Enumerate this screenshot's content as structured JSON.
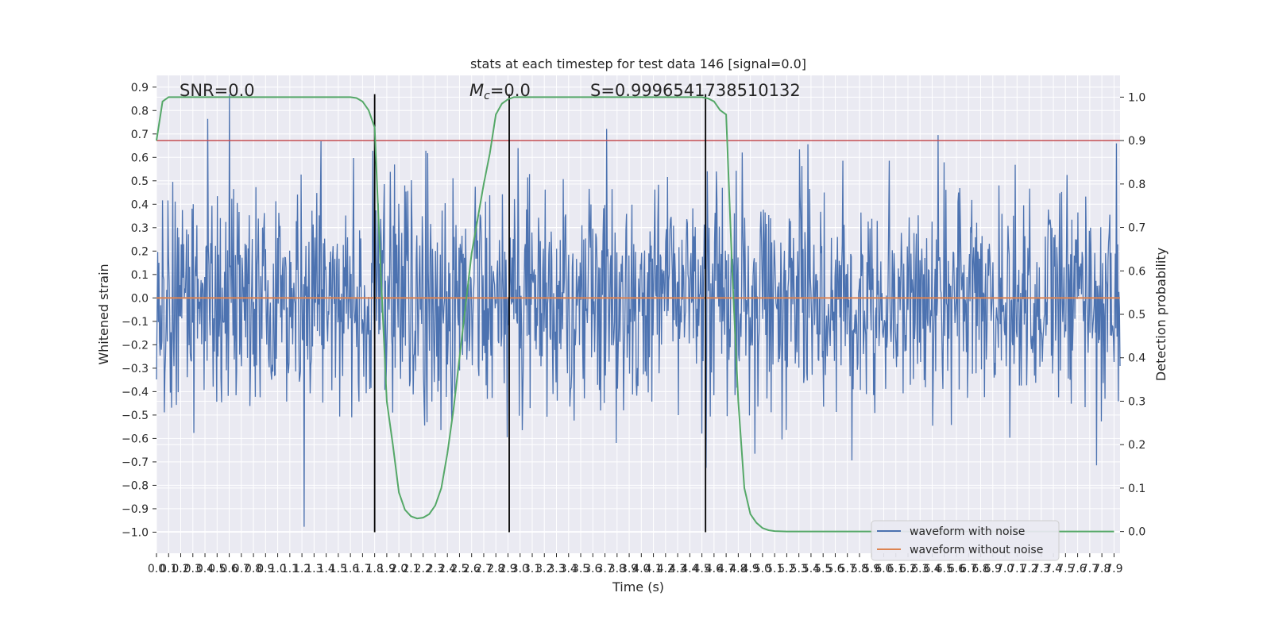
{
  "chart_data": {
    "type": "line",
    "title": "stats at each timestep for test data 146 [signal=0.0]",
    "xlabel": "Time (s)",
    "ylabel": "Whitened strain",
    "y2label": "Detection probability",
    "xlim": [
      0.0,
      7.95
    ],
    "ylim": [
      -1.09,
      0.95
    ],
    "y2lim": [
      -0.05,
      1.05
    ],
    "x_ticks": [
      "0.0",
      "0.1",
      "0.2",
      "0.3",
      "0.4",
      "0.5",
      "0.6",
      "0.7",
      "0.8",
      "0.9",
      "1.0",
      "1.1",
      "1.2",
      "1.3",
      "1.4",
      "1.5",
      "1.6",
      "1.7",
      "1.8",
      "1.9",
      "2.0",
      "2.1",
      "2.2",
      "2.3",
      "2.4",
      "2.5",
      "2.6",
      "2.7",
      "2.8",
      "2.9",
      "3.0",
      "3.1",
      "3.2",
      "3.3",
      "3.4",
      "3.5",
      "3.6",
      "3.7",
      "3.8",
      "3.9",
      "4.0",
      "4.1",
      "4.2",
      "4.3",
      "4.4",
      "4.5",
      "4.6",
      "4.7",
      "4.8",
      "4.9",
      "5.0",
      "5.1",
      "5.2",
      "5.3",
      "5.4",
      "5.5",
      "5.6",
      "5.7",
      "5.8",
      "5.9",
      "6.0",
      "6.1",
      "6.2",
      "6.3",
      "6.4",
      "6.5",
      "6.6",
      "6.7",
      "6.8",
      "6.9",
      "7.0",
      "7.1",
      "7.2",
      "7.3",
      "7.4",
      "7.5",
      "7.6",
      "7.7",
      "7.8",
      "7.9"
    ],
    "y_ticks": [
      "0.9",
      "0.8",
      "0.7",
      "0.6",
      "0.5",
      "0.4",
      "0.3",
      "0.2",
      "0.1",
      "0.0",
      "−0.1",
      "−0.2",
      "−0.3",
      "−0.4",
      "−0.5",
      "−0.6",
      "−0.7",
      "−0.8",
      "−0.9",
      "−1.0"
    ],
    "y2_ticks": [
      "1.0",
      "0.9",
      "0.8",
      "0.7",
      "0.6",
      "0.5",
      "0.4",
      "0.3",
      "0.2",
      "0.1",
      "0.0"
    ],
    "annotations": {
      "snr": "SNR=0.0",
      "mc": "=0.0",
      "mc_symbol": "M",
      "mc_sub": "c",
      "s": "S=0.9996541738510132"
    },
    "threshold_y2": 0.9,
    "vertical_lines_x": [
      1.8,
      2.91,
      4.53
    ],
    "series": [
      {
        "name": "waveform with noise",
        "color": "#4c72b0",
        "style": "noise",
        "n_samples": 1600,
        "sigma": 0.24,
        "min": -1.0,
        "max": 0.87
      },
      {
        "name": "waveform without noise",
        "color": "#dd8452",
        "style": "flat",
        "value": 0.0
      },
      {
        "name": "detection probability",
        "color": "#55a868",
        "axis": "right",
        "x": [
          0.0,
          0.05,
          0.1,
          0.2,
          0.4,
          0.8,
          1.2,
          1.5,
          1.6,
          1.65,
          1.7,
          1.75,
          1.8,
          1.85,
          1.9,
          1.95,
          2.0,
          2.05,
          2.1,
          2.15,
          2.2,
          2.25,
          2.3,
          2.35,
          2.4,
          2.45,
          2.5,
          2.55,
          2.6,
          2.65,
          2.7,
          2.75,
          2.8,
          2.85,
          2.9,
          2.95,
          3.0,
          3.05,
          3.1,
          3.15,
          3.2,
          3.4,
          3.8,
          4.2,
          4.4,
          4.45,
          4.5,
          4.55,
          4.6,
          4.65,
          4.7,
          4.75,
          4.8,
          4.85,
          4.9,
          4.95,
          5.0,
          5.05,
          5.1,
          5.2,
          5.5,
          6.0,
          7.0,
          7.9
        ],
        "y": [
          0.9,
          0.99,
          1.0,
          1.0,
          1.0,
          1.0,
          1.0,
          1.0,
          1.0,
          0.998,
          0.99,
          0.97,
          0.93,
          0.6,
          0.3,
          0.2,
          0.09,
          0.05,
          0.035,
          0.03,
          0.032,
          0.04,
          0.06,
          0.1,
          0.18,
          0.28,
          0.4,
          0.52,
          0.64,
          0.72,
          0.8,
          0.87,
          0.96,
          0.985,
          0.995,
          1.0,
          1.0,
          1.0,
          1.0,
          1.0,
          1.0,
          1.0,
          1.0,
          1.0,
          1.0,
          1.0,
          1.0,
          0.997,
          0.99,
          0.97,
          0.96,
          0.6,
          0.3,
          0.1,
          0.04,
          0.02,
          0.008,
          0.003,
          0.001,
          0.0,
          0.0,
          0.0,
          0.0,
          0.0
        ]
      }
    ],
    "legend": {
      "position": "lower-right",
      "entries": [
        "waveform with noise",
        "waveform without noise"
      ]
    },
    "grid": true,
    "colors": {
      "plot_bg": "#eaeaf2",
      "grid": "#ffffff",
      "threshold": "#c44e52",
      "vline": "#000000",
      "text": "#262626"
    }
  }
}
